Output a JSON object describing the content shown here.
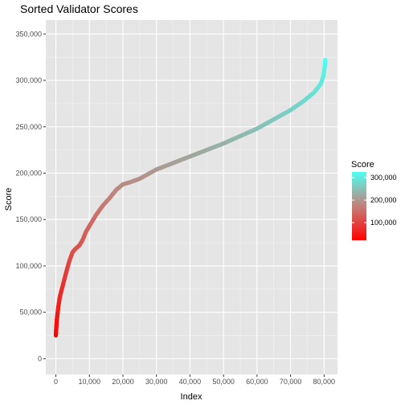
{
  "chart_data": {
    "type": "scatter",
    "title": "Sorted Validator Scores",
    "xlabel": "Index",
    "ylabel": "Score",
    "xlim": [
      -3000,
      84000
    ],
    "ylim": [
      -17000,
      365000
    ],
    "x_ticks": [
      {
        "value": 0,
        "label": "0"
      },
      {
        "value": 10000,
        "label": "10,000"
      },
      {
        "value": 20000,
        "label": "20,000"
      },
      {
        "value": 30000,
        "label": "30,000"
      },
      {
        "value": 40000,
        "label": "40,000"
      },
      {
        "value": 50000,
        "label": "50,000"
      },
      {
        "value": 60000,
        "label": "60,000"
      },
      {
        "value": 70000,
        "label": "70,000"
      },
      {
        "value": 80000,
        "label": "80,000"
      }
    ],
    "y_ticks": [
      {
        "value": 0,
        "label": "0"
      },
      {
        "value": 50000,
        "label": "50,000"
      },
      {
        "value": 100000,
        "label": "100,000"
      },
      {
        "value": 150000,
        "label": "150,000"
      },
      {
        "value": 200000,
        "label": "200,000"
      },
      {
        "value": 250000,
        "label": "250,000"
      },
      {
        "value": 300000,
        "label": "300,000"
      },
      {
        "value": 350000,
        "label": "350,000"
      }
    ],
    "grid": true,
    "background": "#e5e5e5",
    "legend": {
      "title": "Score",
      "placement": "right",
      "range": [
        22000,
        325000
      ],
      "ticks": [
        {
          "value": 100000,
          "label": "100,000"
        },
        {
          "value": 200000,
          "label": "200,000"
        },
        {
          "value": 300000,
          "label": "300,000"
        }
      ],
      "low_color": "#ff0000",
      "high_color": "#4dfff2"
    },
    "series": [
      {
        "color_by": "score",
        "points": [
          {
            "x": 0,
            "y": 25000
          },
          {
            "x": 100,
            "y": 32000
          },
          {
            "x": 300,
            "y": 42000
          },
          {
            "x": 700,
            "y": 55000
          },
          {
            "x": 1200,
            "y": 67000
          },
          {
            "x": 2000,
            "y": 78000
          },
          {
            "x": 3000,
            "y": 92000
          },
          {
            "x": 4000,
            "y": 105000
          },
          {
            "x": 5000,
            "y": 115000
          },
          {
            "x": 6000,
            "y": 119000
          },
          {
            "x": 7000,
            "y": 122000
          },
          {
            "x": 8000,
            "y": 128000
          },
          {
            "x": 9000,
            "y": 137000
          },
          {
            "x": 10000,
            "y": 143000
          },
          {
            "x": 12000,
            "y": 155000
          },
          {
            "x": 14000,
            "y": 165000
          },
          {
            "x": 16000,
            "y": 173000
          },
          {
            "x": 18000,
            "y": 182000
          },
          {
            "x": 20000,
            "y": 188000
          },
          {
            "x": 22000,
            "y": 190000
          },
          {
            "x": 25000,
            "y": 194000
          },
          {
            "x": 30000,
            "y": 204000
          },
          {
            "x": 35000,
            "y": 211000
          },
          {
            "x": 40000,
            "y": 218000
          },
          {
            "x": 45000,
            "y": 225000
          },
          {
            "x": 50000,
            "y": 232000
          },
          {
            "x": 55000,
            "y": 240000
          },
          {
            "x": 60000,
            "y": 248000
          },
          {
            "x": 65000,
            "y": 258000
          },
          {
            "x": 70000,
            "y": 268000
          },
          {
            "x": 74000,
            "y": 278000
          },
          {
            "x": 77000,
            "y": 287000
          },
          {
            "x": 79000,
            "y": 296000
          },
          {
            "x": 79800,
            "y": 305000
          },
          {
            "x": 80200,
            "y": 315000
          },
          {
            "x": 80400,
            "y": 322000
          }
        ]
      }
    ]
  }
}
